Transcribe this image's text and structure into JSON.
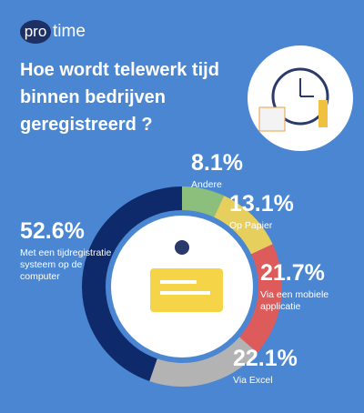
{
  "brand": {
    "badge": "pro",
    "name": "time"
  },
  "chart_data": {
    "type": "pie",
    "title": "Hoe wordt telewerk tijd binnen bedrijven geregistreerd ?",
    "categories": [
      "Andere",
      "Op Papier",
      "Via een mobiele applicatie",
      "Via Excel",
      "Met een tijdregistratie systeem op de computer"
    ],
    "values": [
      8.1,
      13.1,
      21.7,
      22.1,
      52.6
    ],
    "value_labels": [
      "8.1%",
      "13.1%",
      "21.7%",
      "22.1%",
      "52.6%"
    ],
    "colors": [
      "#8cbf7b",
      "#e6cf5c",
      "#de5b5b",
      "#b3b3b3",
      "#0f2a6b"
    ]
  }
}
